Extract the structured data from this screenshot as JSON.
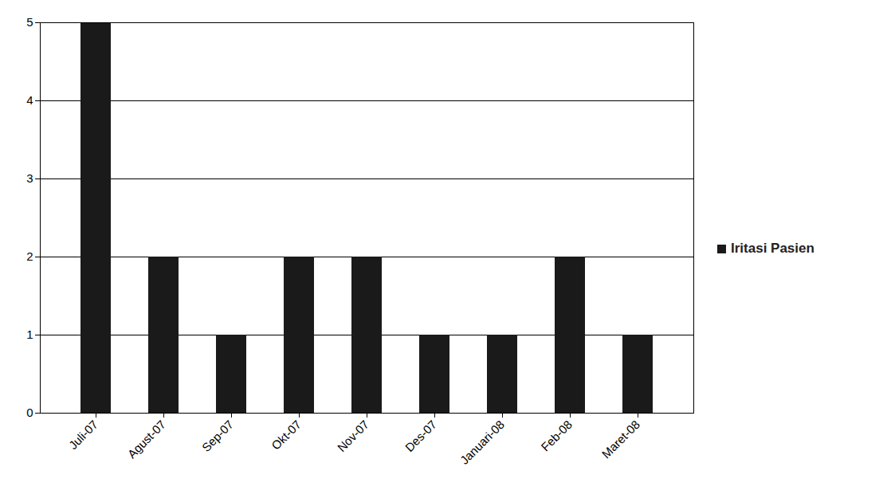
{
  "chart_data": {
    "type": "bar",
    "categories": [
      "Juli-07",
      "Agust-07",
      "Sep-07",
      "Okt-07",
      "Nov-07",
      "Des-07",
      "Januari-08",
      "Feb-08",
      "Maret-08"
    ],
    "series": [
      {
        "name": "Iritasi Pasien",
        "color": "#1a1a1a",
        "values": [
          5,
          2,
          1,
          2,
          2,
          1,
          1,
          2,
          1
        ]
      }
    ],
    "ylim": [
      0,
      5
    ],
    "yticks": [
      0,
      1,
      2,
      3,
      4,
      5
    ],
    "grid": true,
    "legend": "right"
  }
}
